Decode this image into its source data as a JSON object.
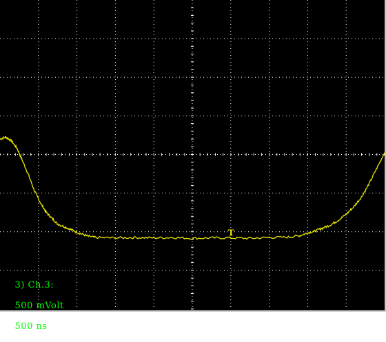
{
  "scope": {
    "readout": {
      "channel_label": "3) Ch.3:",
      "volts_per_div": "500 mVolt",
      "time_per_div": "500 ns"
    },
    "trigger_marker_label": "T",
    "colors": {
      "background": "#000000",
      "grid": "#ffffff",
      "trace": "#e8e800",
      "readout_text": "#00ff00"
    }
  },
  "chart_data": {
    "type": "line",
    "title": "",
    "xlabel": "",
    "ylabel": "",
    "grid": true,
    "x_unit": "divisions",
    "y_unit": "divisions",
    "xlim": [
      0,
      10
    ],
    "ylim": [
      -4,
      4
    ],
    "series": [
      {
        "x": [
          0,
          0.15,
          0.3,
          0.45,
          0.6,
          0.75,
          0.9,
          1.05,
          1.2,
          1.35,
          1.5,
          1.7,
          1.9,
          2.1,
          2.3,
          2.5,
          3.0,
          3.5,
          4.0,
          4.5,
          5.0,
          5.5,
          6.0,
          6.5,
          7.0,
          7.5,
          7.8,
          8.0,
          8.2,
          8.4,
          8.6,
          8.8,
          9.0,
          9.2,
          9.4,
          9.6,
          9.8,
          10.0
        ],
        "values": [
          0.4,
          0.45,
          0.35,
          0.15,
          -0.2,
          -0.55,
          -0.95,
          -1.25,
          -1.5,
          -1.65,
          -1.8,
          -1.88,
          -1.97,
          -2.05,
          -2.12,
          -2.15,
          -2.16,
          -2.15,
          -2.16,
          -2.15,
          -2.17,
          -2.16,
          -2.16,
          -2.17,
          -2.15,
          -2.14,
          -2.1,
          -2.03,
          -1.98,
          -1.9,
          -1.82,
          -1.7,
          -1.55,
          -1.35,
          -1.1,
          -0.75,
          -0.35,
          0.05
        ]
      }
    ]
  }
}
